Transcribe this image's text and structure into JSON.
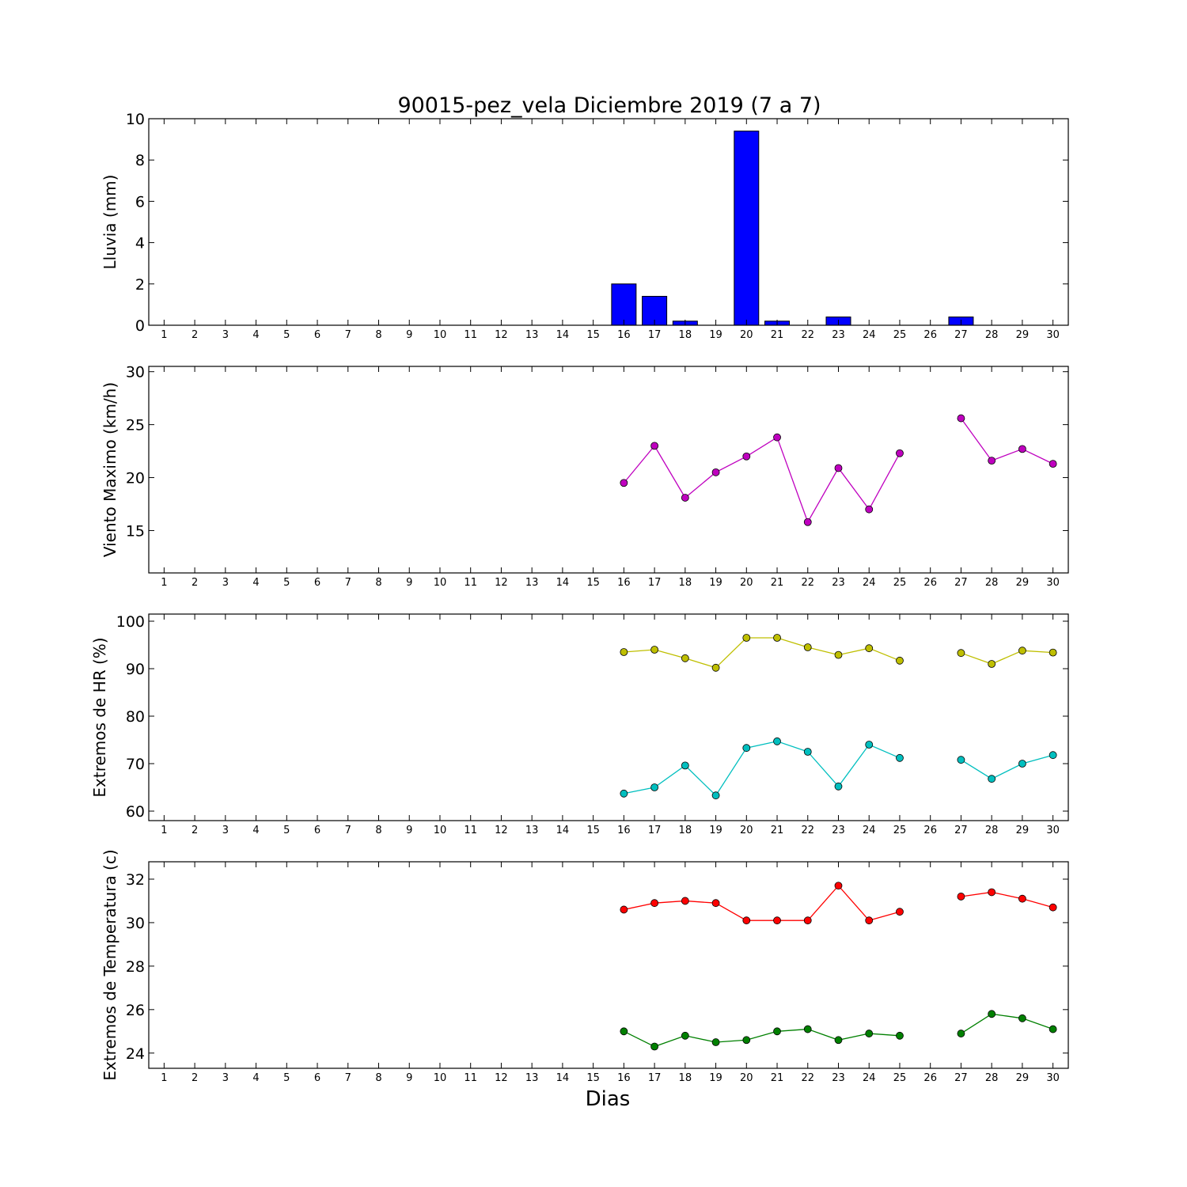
{
  "title": "90015-pez_vela Diciembre 2019  (7 a 7)",
  "xlabel": "Dias",
  "chart_data": [
    {
      "type": "bar",
      "ylabel": "Lluvia (mm)",
      "ylim": [
        0,
        10
      ],
      "yticks": [
        0,
        2,
        4,
        6,
        8,
        10
      ],
      "xlim": [
        0.5,
        30.5
      ],
      "categories": [
        1,
        2,
        3,
        4,
        5,
        6,
        7,
        8,
        9,
        10,
        11,
        12,
        13,
        14,
        15,
        16,
        17,
        18,
        19,
        20,
        21,
        22,
        23,
        24,
        25,
        26,
        27,
        28,
        29,
        30
      ],
      "values": [
        0,
        0,
        0,
        0,
        0,
        0,
        0,
        0,
        0,
        0,
        0,
        0,
        0,
        0,
        0,
        2.0,
        1.4,
        0.2,
        0,
        9.4,
        0.2,
        0,
        0.4,
        0,
        0,
        0,
        0.4,
        0,
        0,
        0
      ],
      "color": "#0000ff"
    },
    {
      "type": "line",
      "ylabel": "Viento Maximo (km/h)",
      "ylim": [
        11,
        30.5
      ],
      "yticks": [
        15,
        20,
        25,
        30
      ],
      "xlim": [
        0.5,
        30.5
      ],
      "x": [
        1,
        2,
        3,
        4,
        5,
        6,
        7,
        8,
        9,
        10,
        11,
        12,
        13,
        14,
        15,
        16,
        17,
        18,
        19,
        20,
        21,
        22,
        23,
        24,
        25,
        26,
        27,
        28,
        29,
        30
      ],
      "series": [
        {
          "color": "#bf00bf",
          "values": [
            null,
            null,
            null,
            null,
            null,
            null,
            null,
            null,
            null,
            null,
            null,
            null,
            null,
            null,
            null,
            19.5,
            23.0,
            18.1,
            20.5,
            22.0,
            23.8,
            15.8,
            20.9,
            17.0,
            22.3,
            null,
            25.6,
            21.6,
            22.7,
            21.3
          ]
        }
      ]
    },
    {
      "type": "line",
      "ylabel": "Extremos de HR (%)",
      "ylim": [
        58,
        101.5
      ],
      "yticks": [
        60,
        70,
        80,
        90,
        100
      ],
      "xlim": [
        0.5,
        30.5
      ],
      "x": [
        1,
        2,
        3,
        4,
        5,
        6,
        7,
        8,
        9,
        10,
        11,
        12,
        13,
        14,
        15,
        16,
        17,
        18,
        19,
        20,
        21,
        22,
        23,
        24,
        25,
        26,
        27,
        28,
        29,
        30
      ],
      "series": [
        {
          "color": "#bfbf00",
          "values": [
            null,
            null,
            null,
            null,
            null,
            null,
            null,
            null,
            null,
            null,
            null,
            null,
            null,
            null,
            null,
            93.5,
            94.0,
            92.2,
            90.2,
            96.5,
            96.5,
            94.5,
            92.9,
            94.3,
            91.7,
            null,
            93.3,
            91.0,
            93.8,
            93.4
          ]
        },
        {
          "color": "#00bfbf",
          "values": [
            null,
            null,
            null,
            null,
            null,
            null,
            null,
            null,
            null,
            null,
            null,
            null,
            null,
            null,
            null,
            63.7,
            65.0,
            69.6,
            63.3,
            73.3,
            74.7,
            72.5,
            65.2,
            74.0,
            71.2,
            null,
            70.8,
            66.8,
            70.0,
            71.8
          ]
        }
      ]
    },
    {
      "type": "line",
      "ylabel": "Extremos de Temperatura (c)",
      "ylim": [
        23.3,
        32.8
      ],
      "yticks": [
        24,
        26,
        28,
        30,
        32
      ],
      "xlim": [
        0.5,
        30.5
      ],
      "x": [
        1,
        2,
        3,
        4,
        5,
        6,
        7,
        8,
        9,
        10,
        11,
        12,
        13,
        14,
        15,
        16,
        17,
        18,
        19,
        20,
        21,
        22,
        23,
        24,
        25,
        26,
        27,
        28,
        29,
        30
      ],
      "series": [
        {
          "color": "#ff0000",
          "values": [
            null,
            null,
            null,
            null,
            null,
            null,
            null,
            null,
            null,
            null,
            null,
            null,
            null,
            null,
            null,
            30.6,
            30.9,
            31.0,
            30.9,
            30.1,
            30.1,
            30.1,
            31.7,
            30.1,
            30.5,
            null,
            31.2,
            31.4,
            31.1,
            30.7
          ]
        },
        {
          "color": "#008000",
          "values": [
            null,
            null,
            null,
            null,
            null,
            null,
            null,
            null,
            null,
            null,
            null,
            null,
            null,
            null,
            null,
            25.0,
            24.3,
            24.8,
            24.5,
            24.6,
            25.0,
            25.1,
            24.6,
            24.9,
            24.8,
            null,
            24.9,
            25.8,
            25.6,
            25.1
          ]
        }
      ]
    }
  ]
}
